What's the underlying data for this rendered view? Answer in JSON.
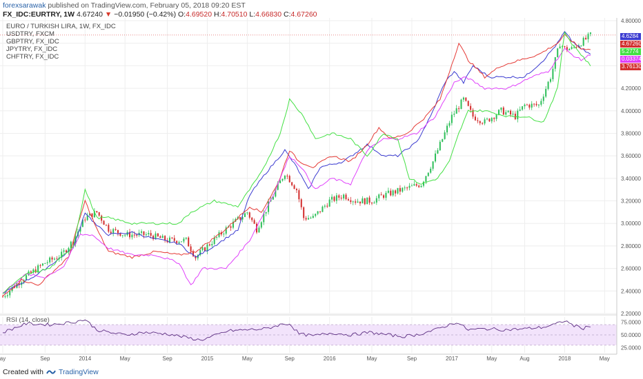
{
  "header": {
    "author": "forexsarawak",
    "published_text": "published on TradingView.com, February 05, 2018 09:20 EST"
  },
  "ohlc": {
    "symbol": "FX_IDC:EURTRY, 1W",
    "last": "4.67240",
    "change": "−0.01950 (−0.42%)",
    "o_label": "O:",
    "o": "4.69520",
    "h_label": "H:",
    "h": "4.70510",
    "l_label": "L:",
    "l": "4.66830",
    "c_label": "C:",
    "c": "4.67260"
  },
  "legend": {
    "main": "EURO / TURKISH LIRA, 1W, FX_IDC",
    "items": [
      "USDTRY, FXCM",
      "GBPTRY, FX_IDC",
      "JPYTRY, FX_IDC",
      "CHFTRY, FX_IDC"
    ]
  },
  "rsi_label": "RSI (14, close)",
  "footer": {
    "created_with": "Created with",
    "brand": "TradingView"
  },
  "colors": {
    "up": "#26a69a",
    "up_fill": "#2fbf5a",
    "down": "#d32f2f",
    "usd": "#3b3bd0",
    "gbp": "#e53935",
    "jpy": "#e040fb",
    "chf": "#43e043",
    "rsi": "#5c2d82",
    "rsi_band": "#f2e3fb"
  },
  "chart_data": [
    {
      "type": "line",
      "title": "EURO / TURKISH LIRA, 1W, FX_IDC",
      "x_tick_labels": [
        "ay",
        "Sep",
        "2014",
        "May",
        "Sep",
        "2015",
        "May",
        "Sep",
        "2016",
        "May",
        "Sep",
        "2017",
        "May",
        "Aug",
        "2018",
        "May"
      ],
      "x_tick_index": [
        0,
        18,
        35,
        52,
        70,
        87,
        104,
        122,
        139,
        157,
        174,
        191,
        208,
        222,
        239,
        256
      ],
      "y_ticks": [
        2.2,
        2.4,
        2.6,
        2.8,
        3.0,
        3.2,
        3.4,
        3.6,
        3.8,
        4.0,
        4.2,
        4.4,
        4.6,
        4.8
      ],
      "y_tick_labels": [
        "2.20000",
        "2.40000",
        "2.60000",
        "2.80000",
        "3.00000",
        "3.20000",
        "3.40000",
        "3.60000",
        "3.80000",
        "4.00000",
        "4.20000",
        "4.40000",
        "4.60000",
        "4.80000"
      ],
      "ylim": [
        2.2,
        4.8
      ],
      "price_line": 4.6726,
      "eurtry_anchors": [
        [
          0,
          2.35
        ],
        [
          8,
          2.5
        ],
        [
          18,
          2.65
        ],
        [
          25,
          2.72
        ],
        [
          30,
          2.85
        ],
        [
          35,
          3.05
        ],
        [
          40,
          3.1
        ],
        [
          45,
          2.95
        ],
        [
          52,
          2.9
        ],
        [
          62,
          2.9
        ],
        [
          70,
          2.85
        ],
        [
          78,
          2.85
        ],
        [
          82,
          2.7
        ],
        [
          87,
          2.8
        ],
        [
          95,
          2.95
        ],
        [
          104,
          3.1
        ],
        [
          108,
          2.95
        ],
        [
          115,
          3.25
        ],
        [
          120,
          3.45
        ],
        [
          125,
          3.3
        ],
        [
          128,
          3.05
        ],
        [
          132,
          3.05
        ],
        [
          139,
          3.2
        ],
        [
          145,
          3.25
        ],
        [
          150,
          3.2
        ],
        [
          157,
          3.2
        ],
        [
          162,
          3.25
        ],
        [
          170,
          3.3
        ],
        [
          178,
          3.35
        ],
        [
          183,
          3.55
        ],
        [
          187,
          3.75
        ],
        [
          191,
          3.95
        ],
        [
          196,
          4.1
        ],
        [
          200,
          3.95
        ],
        [
          205,
          3.9
        ],
        [
          212,
          4.0
        ],
        [
          218,
          3.95
        ],
        [
          222,
          4.05
        ],
        [
          228,
          4.05
        ],
        [
          233,
          4.3
        ],
        [
          237,
          4.6
        ],
        [
          239,
          4.55
        ],
        [
          242,
          4.55
        ],
        [
          247,
          4.62
        ],
        [
          250,
          4.67
        ]
      ],
      "series": [
        {
          "name": "USDTRY, FXCM",
          "color": "#3b3bd0",
          "anchors": [
            [
              0,
              2.38
            ],
            [
              15,
              2.55
            ],
            [
              30,
              2.78
            ],
            [
              35,
              3.1
            ],
            [
              40,
              2.98
            ],
            [
              45,
              2.9
            ],
            [
              55,
              2.92
            ],
            [
              65,
              2.86
            ],
            [
              75,
              2.82
            ],
            [
              82,
              2.7
            ],
            [
              90,
              2.8
            ],
            [
              100,
              2.94
            ],
            [
              105,
              3.25
            ],
            [
              112,
              3.45
            ],
            [
              120,
              3.65
            ],
            [
              125,
              3.5
            ],
            [
              130,
              3.3
            ],
            [
              135,
              3.5
            ],
            [
              145,
              3.55
            ],
            [
              155,
              3.7
            ],
            [
              162,
              3.6
            ],
            [
              168,
              3.6
            ],
            [
              176,
              3.72
            ],
            [
              182,
              3.95
            ],
            [
              188,
              4.25
            ],
            [
              192,
              4.35
            ],
            [
              196,
              4.25
            ],
            [
              200,
              4.4
            ],
            [
              207,
              4.3
            ],
            [
              215,
              4.3
            ],
            [
              222,
              4.3
            ],
            [
              230,
              4.45
            ],
            [
              236,
              4.6
            ],
            [
              239,
              4.7
            ],
            [
              242,
              4.62
            ],
            [
              246,
              4.55
            ],
            [
              250,
              4.5
            ]
          ]
        },
        {
          "name": "GBPTRY, FX_IDC",
          "color": "#e53935",
          "anchors": [
            [
              0,
              2.35
            ],
            [
              8,
              2.5
            ],
            [
              15,
              2.45
            ],
            [
              28,
              2.7
            ],
            [
              35,
              3.2
            ],
            [
              40,
              2.95
            ],
            [
              45,
              2.75
            ],
            [
              55,
              2.7
            ],
            [
              65,
              2.75
            ],
            [
              75,
              2.72
            ],
            [
              82,
              2.75
            ],
            [
              95,
              2.95
            ],
            [
              105,
              3.15
            ],
            [
              110,
              3.1
            ],
            [
              117,
              3.35
            ],
            [
              122,
              3.65
            ],
            [
              126,
              3.55
            ],
            [
              132,
              3.5
            ],
            [
              140,
              3.6
            ],
            [
              148,
              3.55
            ],
            [
              155,
              3.7
            ],
            [
              160,
              3.85
            ],
            [
              165,
              3.75
            ],
            [
              172,
              3.8
            ],
            [
              180,
              3.95
            ],
            [
              186,
              4.1
            ],
            [
              190,
              4.35
            ],
            [
              194,
              4.6
            ],
            [
              198,
              4.45
            ],
            [
              205,
              4.3
            ],
            [
              212,
              4.4
            ],
            [
              220,
              4.45
            ],
            [
              228,
              4.5
            ],
            [
              236,
              4.6
            ],
            [
              239,
              4.67
            ],
            [
              242,
              4.62
            ],
            [
              246,
              4.55
            ],
            [
              250,
              4.55
            ]
          ]
        },
        {
          "name": "JPYTRY, FX_IDC",
          "color": "#e040fb",
          "anchors": [
            [
              0,
              2.38
            ],
            [
              10,
              2.55
            ],
            [
              18,
              2.52
            ],
            [
              26,
              2.62
            ],
            [
              33,
              2.9
            ],
            [
              38,
              2.9
            ],
            [
              45,
              2.78
            ],
            [
              55,
              2.72
            ],
            [
              65,
              2.72
            ],
            [
              75,
              2.65
            ],
            [
              80,
              2.45
            ],
            [
              85,
              2.6
            ],
            [
              95,
              2.6
            ],
            [
              105,
              2.85
            ],
            [
              115,
              3.25
            ],
            [
              122,
              3.6
            ],
            [
              127,
              3.5
            ],
            [
              133,
              3.3
            ],
            [
              140,
              3.4
            ],
            [
              148,
              3.35
            ],
            [
              155,
              3.65
            ],
            [
              162,
              3.75
            ],
            [
              168,
              3.75
            ],
            [
              176,
              3.8
            ],
            [
              184,
              3.95
            ],
            [
              192,
              4.25
            ],
            [
              197,
              4.3
            ],
            [
              205,
              4.2
            ],
            [
              215,
              4.2
            ],
            [
              225,
              4.3
            ],
            [
              232,
              4.35
            ],
            [
              239,
              4.55
            ],
            [
              242,
              4.5
            ],
            [
              246,
              4.45
            ],
            [
              250,
              4.5
            ]
          ]
        },
        {
          "name": "CHFTRY, FX_IDC",
          "color": "#43e043",
          "anchors": [
            [
              0,
              2.38
            ],
            [
              10,
              2.55
            ],
            [
              20,
              2.6
            ],
            [
              30,
              2.8
            ],
            [
              35,
              3.3
            ],
            [
              40,
              3.05
            ],
            [
              45,
              3.05
            ],
            [
              55,
              3.0
            ],
            [
              65,
              3.0
            ],
            [
              75,
              3.0
            ],
            [
              80,
              3.1
            ],
            [
              90,
              3.2
            ],
            [
              100,
              3.15
            ],
            [
              110,
              3.45
            ],
            [
              118,
              3.8
            ],
            [
              122,
              4.1
            ],
            [
              128,
              3.95
            ],
            [
              133,
              3.75
            ],
            [
              140,
              3.8
            ],
            [
              148,
              3.75
            ],
            [
              155,
              3.6
            ],
            [
              162,
              3.8
            ],
            [
              168,
              3.75
            ],
            [
              173,
              3.4
            ],
            [
              178,
              3.35
            ],
            [
              185,
              3.4
            ],
            [
              190,
              3.55
            ],
            [
              194,
              3.8
            ],
            [
              198,
              4.0
            ],
            [
              205,
              4.0
            ],
            [
              215,
              3.95
            ],
            [
              222,
              3.95
            ],
            [
              230,
              3.9
            ],
            [
              236,
              4.2
            ],
            [
              239,
              4.7
            ],
            [
              242,
              4.6
            ],
            [
              246,
              4.5
            ],
            [
              250,
              4.4
            ]
          ]
        }
      ]
    },
    {
      "type": "line",
      "title": "RSI (14, close)",
      "y_ticks": [
        25,
        50,
        75
      ],
      "y_tick_labels": [
        "25.0000",
        "50.0000",
        "75.0000"
      ],
      "band": [
        30,
        70
      ],
      "ylim": [
        15,
        85
      ],
      "series": [
        {
          "name": "RSI (14, close)",
          "color": "#5c2d82",
          "anchors": [
            [
              0,
              55
            ],
            [
              10,
              72
            ],
            [
              20,
              70
            ],
            [
              30,
              75
            ],
            [
              35,
              80
            ],
            [
              40,
              60
            ],
            [
              45,
              55
            ],
            [
              52,
              50
            ],
            [
              60,
              55
            ],
            [
              70,
              52
            ],
            [
              78,
              45
            ],
            [
              84,
              40
            ],
            [
              88,
              45
            ],
            [
              96,
              58
            ],
            [
              104,
              60
            ],
            [
              112,
              62
            ],
            [
              118,
              70
            ],
            [
              122,
              72
            ],
            [
              126,
              52
            ],
            [
              132,
              48
            ],
            [
              140,
              54
            ],
            [
              148,
              50
            ],
            [
              156,
              55
            ],
            [
              164,
              50
            ],
            [
              170,
              47
            ],
            [
              176,
              50
            ],
            [
              184,
              60
            ],
            [
              190,
              70
            ],
            [
              193,
              75
            ],
            [
              198,
              60
            ],
            [
              206,
              62
            ],
            [
              214,
              60
            ],
            [
              222,
              62
            ],
            [
              230,
              65
            ],
            [
              236,
              72
            ],
            [
              239,
              78
            ],
            [
              243,
              68
            ],
            [
              247,
              63
            ],
            [
              250,
              68
            ]
          ]
        }
      ]
    }
  ]
}
